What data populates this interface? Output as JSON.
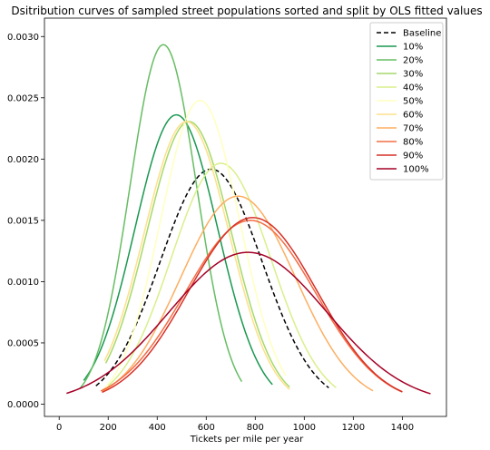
{
  "chart_data": {
    "type": "line",
    "title": "Dsitribution curves of sampled street populations sorted and split by OLS fitted values",
    "xlabel": "Tickets per mile per year",
    "ylabel": "",
    "xlim": [
      -60,
      1580
    ],
    "ylim": [
      -0.0001,
      0.00315
    ],
    "xticks": [
      0,
      200,
      400,
      600,
      800,
      1000,
      1200,
      1400
    ],
    "xtick_labels": [
      "0",
      "200",
      "400",
      "600",
      "800",
      "1000",
      "1200",
      "1400"
    ],
    "yticks": [
      0,
      0.0005,
      0.001,
      0.0015,
      0.002,
      0.0025,
      0.003
    ],
    "ytick_labels": [
      "0.0000",
      "0.0005",
      "0.0010",
      "0.0015",
      "0.0020",
      "0.0025",
      "0.0030"
    ],
    "grid": false,
    "legend_position": "top-right",
    "series": [
      {
        "name": "Baseline",
        "color": "#000000",
        "dashed": true,
        "mean": 620,
        "sd": 208,
        "x_range": [
          150,
          1100
        ]
      },
      {
        "name": "10%",
        "color": "#1a9850",
        "dashed": false,
        "mean": 478,
        "sd": 169,
        "x_range": [
          100,
          870
        ]
      },
      {
        "name": "20%",
        "color": "#66bd63",
        "dashed": false,
        "mean": 425,
        "sd": 136,
        "x_range": [
          85,
          745
        ]
      },
      {
        "name": "30%",
        "color": "#a6d96a",
        "dashed": false,
        "mean": 530,
        "sd": 173,
        "x_range": [
          190,
          940
        ]
      },
      {
        "name": "40%",
        "color": "#d9ef8b",
        "dashed": false,
        "mean": 660,
        "sd": 203,
        "x_range": [
          200,
          1130
        ]
      },
      {
        "name": "50%",
        "color": "#ffffbf",
        "dashed": false,
        "mean": 575,
        "sd": 161,
        "x_range": [
          170,
          925
        ]
      },
      {
        "name": "60%",
        "color": "#fee08b",
        "dashed": false,
        "mean": 520,
        "sd": 173,
        "x_range": [
          185,
          940
        ]
      },
      {
        "name": "70%",
        "color": "#fdae61",
        "dashed": false,
        "mean": 730,
        "sd": 235,
        "x_range": [
          175,
          1280
        ]
      },
      {
        "name": "80%",
        "color": "#f46d43",
        "dashed": false,
        "mean": 780,
        "sd": 266,
        "x_range": [
          170,
          1400
        ]
      },
      {
        "name": "90%",
        "color": "#d73027",
        "dashed": false,
        "mean": 790,
        "sd": 262,
        "x_range": [
          175,
          1400
        ]
      },
      {
        "name": "100%",
        "color": "#a50026",
        "dashed": false,
        "mean": 770,
        "sd": 322,
        "x_range": [
          30,
          1515
        ]
      }
    ]
  }
}
